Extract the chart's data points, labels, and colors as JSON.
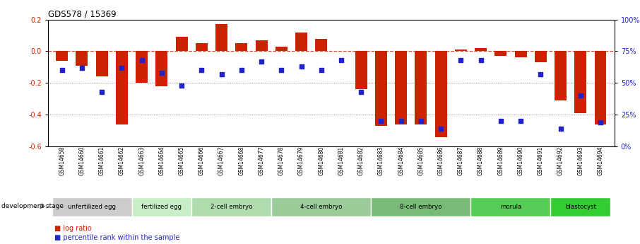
{
  "title": "GDS578 / 15369",
  "samples": [
    "GSM14658",
    "GSM14660",
    "GSM14661",
    "GSM14662",
    "GSM14663",
    "GSM14664",
    "GSM14665",
    "GSM14666",
    "GSM14667",
    "GSM14668",
    "GSM14677",
    "GSM14678",
    "GSM14679",
    "GSM14680",
    "GSM14681",
    "GSM14682",
    "GSM14683",
    "GSM14684",
    "GSM14685",
    "GSM14686",
    "GSM14687",
    "GSM14688",
    "GSM14689",
    "GSM14690",
    "GSM14691",
    "GSM14692",
    "GSM14693",
    "GSM14694"
  ],
  "log_ratio": [
    -0.06,
    -0.09,
    -0.16,
    -0.46,
    -0.2,
    -0.22,
    0.09,
    0.05,
    0.17,
    0.05,
    0.07,
    0.03,
    0.12,
    0.08,
    0.0,
    -0.24,
    -0.47,
    -0.46,
    -0.46,
    -0.54,
    0.01,
    0.02,
    -0.03,
    -0.04,
    -0.07,
    -0.31,
    -0.39,
    -0.46
  ],
  "percentile_rank": [
    60,
    62,
    43,
    62,
    68,
    58,
    48,
    60,
    57,
    60,
    67,
    60,
    63,
    60,
    68,
    43,
    20,
    20,
    20,
    14,
    68,
    68,
    20,
    20,
    57,
    14,
    40,
    19
  ],
  "bar_color": "#cc2200",
  "dot_color": "#2222cc",
  "ylim_left": [
    -0.6,
    0.2
  ],
  "ylim_right": [
    0,
    100
  ],
  "y_ticks_left": [
    -0.6,
    -0.4,
    -0.2,
    0.0,
    0.2
  ],
  "y_ticks_right": [
    0,
    25,
    50,
    75,
    100
  ],
  "grid_lines": [
    -0.2,
    -0.4
  ],
  "zero_line": 0.0,
  "stages": [
    {
      "label": "unfertilized egg",
      "n": 4,
      "color": "#cccccc"
    },
    {
      "label": "fertilized egg",
      "n": 3,
      "color": "#c8eec8"
    },
    {
      "label": "2-cell embryo",
      "n": 4,
      "color": "#b0ddb0"
    },
    {
      "label": "4-cell embryo",
      "n": 5,
      "color": "#99cc99"
    },
    {
      "label": "8-cell embryo",
      "n": 5,
      "color": "#77bb77"
    },
    {
      "label": "morula",
      "n": 4,
      "color": "#55cc55"
    },
    {
      "label": "blastocyst",
      "n": 3,
      "color": "#33cc33"
    }
  ],
  "xlabel": "development stage",
  "legend_log": "log ratio",
  "legend_pct": "percentile rank within the sample",
  "background_color": "#ffffff"
}
